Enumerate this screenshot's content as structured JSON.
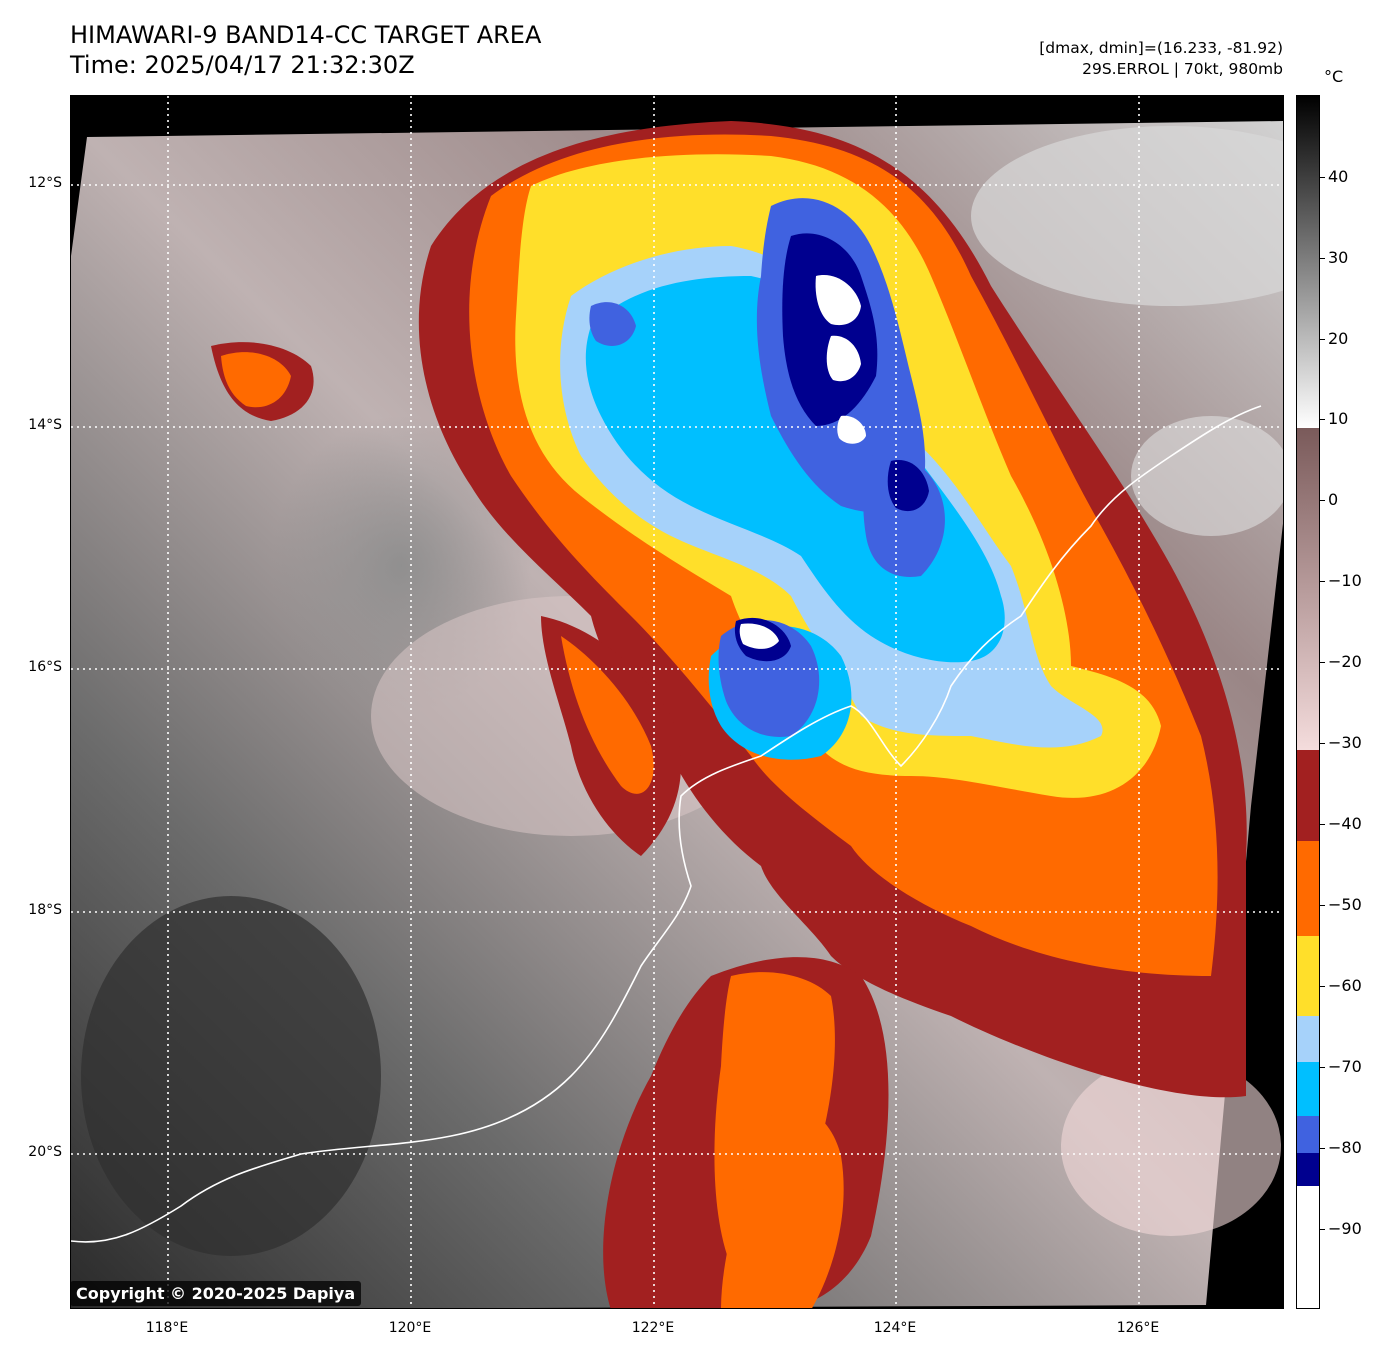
{
  "header": {
    "title_line1": "HIMAWARI-9 BAND14-CC TARGET AREA",
    "title_line2": "Time: 2025/04/17 21:32:30Z",
    "info_line1": "[dmax, dmin]=(16.233, -81.92)",
    "info_line2": "29S.ERROL | 70kt, 980mb"
  },
  "colorbar": {
    "unit": "°C",
    "ticks": [
      "40",
      "30",
      "20",
      "10",
      "0",
      "−10",
      "−20",
      "−30",
      "−40",
      "−50",
      "−60",
      "−70",
      "−80",
      "−90"
    ],
    "colors": {
      "black": "#000000",
      "white": "#ffffff",
      "brown": "#7a5a5a",
      "pink": "#f4dcdc",
      "darkred": "#a22020",
      "orange": "#ff6a00",
      "yellow": "#ffdf2a",
      "lightblue": "#a6d2fa",
      "deepskyblue": "#00bfff",
      "royalblue": "#4062e0",
      "navy": "#00008f"
    }
  },
  "map": {
    "lat_labels": [
      "12°S",
      "14°S",
      "16°S",
      "18°S",
      "20°S"
    ],
    "lon_labels": [
      "118°E",
      "120°E",
      "122°E",
      "124°E",
      "126°E"
    ],
    "copyright": "Copyright © 2020-2025 Dapiya"
  }
}
